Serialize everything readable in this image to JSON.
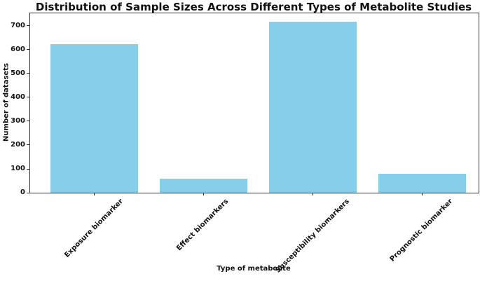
{
  "chart_data": {
    "type": "bar",
    "title": "Distribution of Sample Sizes Across Different Types of Metabolite Studies",
    "xlabel": "Type of metabolite",
    "ylabel": "Number of datasets",
    "categories": [
      "Exposure biomarker",
      "Effect biomarkers",
      "Susceptibility biomarkers",
      "Prognostic biomarker"
    ],
    "values": [
      622,
      60,
      718,
      80
    ],
    "yticks": [
      0,
      100,
      200,
      300,
      400,
      500,
      600,
      700
    ],
    "ylim": [
      0,
      752
    ],
    "bar_color": "#87CEEB",
    "axis_color": "#333333",
    "text_color": "#111111",
    "grid": false,
    "legend": null,
    "x_tick_label_rotation_deg": 45
  }
}
